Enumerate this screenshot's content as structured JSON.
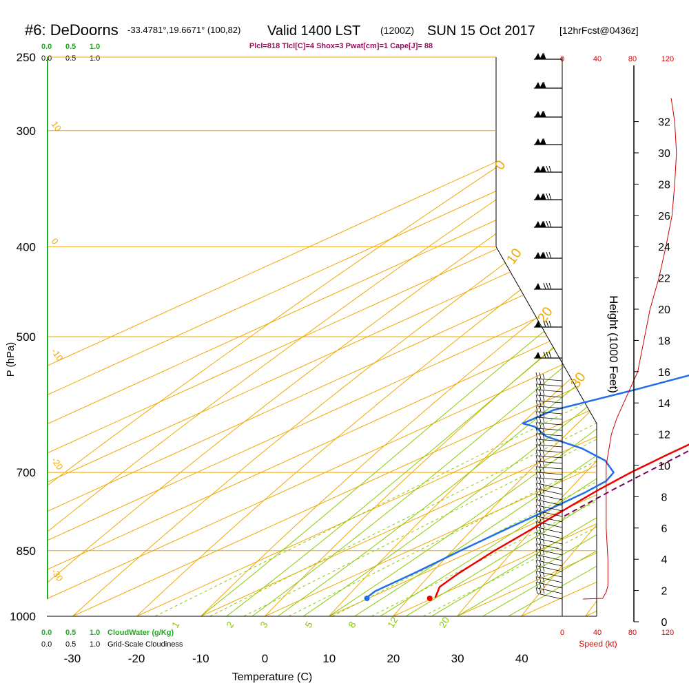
{
  "header": {
    "station": "#6: DeDoorns",
    "coords": "-33.4781°,19.6671° (100,82)",
    "valid": "Valid 1400 LST",
    "zulu": "(1200Z)",
    "date": "SUN 15 Oct 2017",
    "forecast": "[12hrFcst@0436z]",
    "indices": "Plcl=818 Tlcl[C]=4 Shox=3 Pwat[cm]=1 Cape[J]= 88"
  },
  "colors": {
    "temperature": "#ee0000",
    "dewpoint": "#1f6fe8",
    "parcel": "#7a0060",
    "isobar_isotherm": "#f0a800",
    "mixing_ratio": "#88cc00",
    "cloudwater": "#22aa22",
    "wind_speed": "#cc0000",
    "indices_text": "#9a1060"
  },
  "scales": {
    "cloudwater_top": [
      "0.0",
      "0.5",
      "1.0"
    ],
    "cloudiness_top": [
      "0.0",
      "0.5",
      "1.0"
    ],
    "cloudwater_bottom": [
      "0.0",
      "0.5",
      "1.0"
    ],
    "cloudwater_label": "CloudWater (g/Kg)",
    "cloudiness_bottom": [
      "0.0",
      "0.5",
      "1.0"
    ],
    "cloudiness_label": "Grid-Scale Cloudiness",
    "speed_top": [
      "0",
      "40",
      "80",
      "120"
    ],
    "speed_bottom": [
      "0",
      "40",
      "80",
      "120"
    ],
    "speed_label": "Speed (kt)"
  },
  "chart_data": {
    "type": "line",
    "title": "#6: DeDoorns -33.4781°,19.6671° (100,82) Valid 1400 LST (1200Z) SUN 15 Oct 2017 [12hrFcst@0436z]",
    "xlabel": "Temperature (C)",
    "ylabel": "P (hPa)",
    "y2label": "Height (1000 Feet)",
    "xlim": [
      -35,
      36
    ],
    "ylim": [
      1000,
      250
    ],
    "y_scale": "log",
    "x_ticks": [
      -30,
      -20,
      -10,
      0,
      10,
      20,
      30,
      40
    ],
    "y_ticks": [
      250,
      300,
      400,
      500,
      700,
      850,
      1000
    ],
    "height_ticks": [
      0,
      2,
      4,
      6,
      8,
      10,
      12,
      14,
      16,
      18,
      20,
      22,
      24,
      26,
      28,
      30,
      32
    ],
    "dry_adiabat_labels": [
      "10",
      "0",
      "-10",
      "-20",
      "-30",
      "0",
      "10",
      "20",
      "30"
    ],
    "mixing_ratio_labels": [
      "1",
      "2",
      "3",
      "5",
      "8",
      "12",
      "20"
    ],
    "series": [
      {
        "key": "temperature",
        "pressure": [
          955,
          930,
          900,
          870,
          850,
          800,
          760,
          730,
          700,
          670,
          640,
          610,
          595,
          580,
          560,
          540,
          500,
          460,
          420,
          400,
          380,
          350,
          320,
          300,
          280,
          265,
          255
        ],
        "values": [
          20.2,
          17.2,
          15.5,
          14.2,
          13.3,
          11.5,
          9.8,
          8.6,
          7.7,
          7.3,
          7.1,
          7.0,
          7.3,
          6.9,
          6.4,
          5.3,
          3.5,
          2.0,
          1.0,
          0.5,
          -0.2,
          -1.2,
          -2.1,
          -2.3,
          -2.0,
          -1.0,
          0.5
        ]
      },
      {
        "key": "dewpoint",
        "pressure": [
          955,
          940,
          900,
          850,
          800,
          760,
          735,
          715,
          700,
          680,
          660,
          640,
          625,
          620,
          600,
          570,
          550,
          525,
          500,
          460,
          420,
          400,
          360,
          340,
          320,
          300,
          280,
          260,
          255
        ],
        "values": [
          9.5,
          8.6,
          8.5,
          8.0,
          7.7,
          7.6,
          7.4,
          6.8,
          5.0,
          -0.3,
          -8.0,
          -18.0,
          -23.0,
          -26.0,
          -25.8,
          -20.0,
          -16.5,
          -15.0,
          -13.0,
          -11.0,
          -9.0,
          -8.0,
          -7.5,
          -7.5,
          -8.3,
          -9.0,
          -11.5,
          -14.5,
          -19.5
        ]
      },
      {
        "key": "parcel",
        "pressure": [
          780,
          760,
          730,
          700,
          670,
          640,
          610,
          595,
          580,
          565
        ],
        "values": [
          12.3,
          11.7,
          10.8,
          10.1,
          9.5,
          8.6,
          7.9,
          7.6,
          7.3,
          6.9
        ]
      }
    ],
    "surface": {
      "temperature": 21.5,
      "dewpoint": 11.7
    },
    "wind_speed_profile": {
      "height_kft": [
        1.5,
        1.9,
        2.3,
        3,
        4,
        6,
        8,
        10,
        12,
        13,
        16,
        20,
        22,
        24,
        26,
        28,
        30,
        32,
        33.5
      ],
      "speed_kt": [
        46,
        50,
        52,
        52,
        52,
        50,
        50,
        50,
        56,
        62,
        86,
        100,
        110,
        118,
        125,
        128,
        130,
        128,
        124
      ]
    }
  }
}
